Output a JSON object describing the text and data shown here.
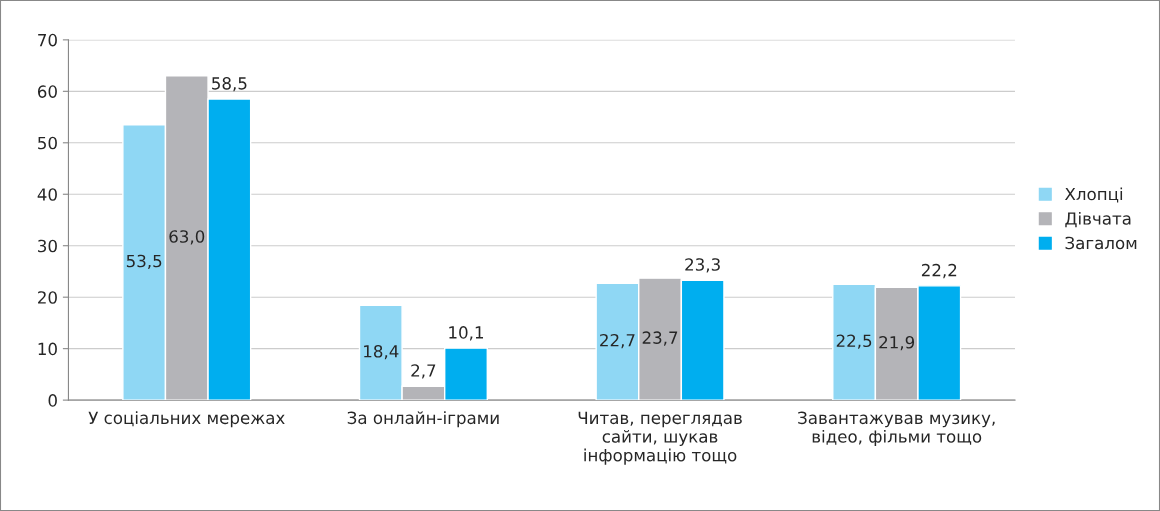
{
  "chart_data": {
    "type": "bar",
    "categories": [
      "У соціальних мережах",
      "За онлайн-іграми",
      "Читав, переглядав\nсайти, шукав\nінформацію тощо",
      "Завантажував музику,\nвідео, фільми тощо"
    ],
    "series": [
      {
        "name": "Хлопці",
        "color": "#8fd7f4",
        "values": [
          53.5,
          18.4,
          22.7,
          22.5
        ],
        "value_labels": [
          "53,5",
          "18,4",
          "22,7",
          "22,5"
        ]
      },
      {
        "name": "Дівчата",
        "color": "#b4b4b8",
        "values": [
          63.0,
          2.7,
          23.7,
          21.9
        ],
        "value_labels": [
          "63,0",
          "2,7",
          "23,7",
          "21,9"
        ]
      },
      {
        "name": "Загалом",
        "color": "#00aeef",
        "values": [
          58.5,
          10.1,
          23.3,
          22.2
        ],
        "value_labels": [
          "58,5",
          "10,1",
          "23,3",
          "22,2"
        ]
      }
    ],
    "ylim": [
      0,
      70
    ],
    "yticks": [
      0,
      10,
      20,
      30,
      40,
      50,
      60,
      70
    ],
    "grid": "y",
    "legend": "right"
  }
}
